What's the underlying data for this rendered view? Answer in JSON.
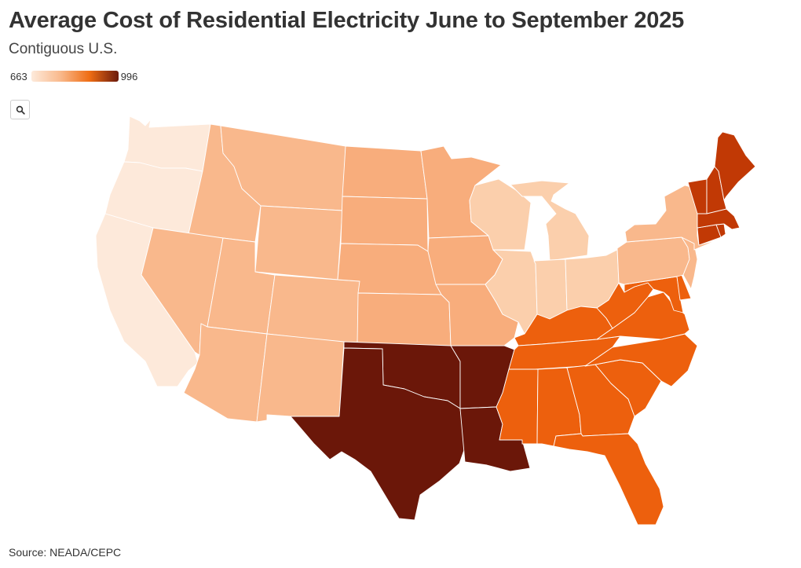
{
  "header": {
    "title": "Average Cost of Residential Electricity June to September 2025",
    "subtitle": "Contiguous U.S."
  },
  "legend": {
    "min_label": "663",
    "max_label": "996",
    "gradient": [
      "#fdeadb",
      "#f9b98c",
      "#ef6d14",
      "#6b1a0c"
    ]
  },
  "controls": {
    "zoom_icon": "magnifier-icon"
  },
  "footer": {
    "source": "Source: NEADA/CEPC"
  },
  "map": {
    "region": "Contiguous U.S.",
    "level_colors": {
      "1": "#fde9da",
      "2": "#fbcfac",
      "3": "#f9b88c",
      "4": "#f8ad7c",
      "5": "#ed600d",
      "6": "#c13905",
      "7": "#6b1709"
    },
    "states": [
      {
        "id": "WA",
        "level": 1
      },
      {
        "id": "OR",
        "level": 1
      },
      {
        "id": "CA",
        "level": 1
      },
      {
        "id": "WI",
        "level": 2
      },
      {
        "id": "MI",
        "level": 2
      },
      {
        "id": "IL",
        "level": 2
      },
      {
        "id": "IN",
        "level": 2
      },
      {
        "id": "OH",
        "level": 2
      },
      {
        "id": "ID",
        "level": 3
      },
      {
        "id": "MT",
        "level": 3
      },
      {
        "id": "WY",
        "level": 3
      },
      {
        "id": "NV",
        "level": 3
      },
      {
        "id": "UT",
        "level": 3
      },
      {
        "id": "CO",
        "level": 3
      },
      {
        "id": "AZ",
        "level": 3
      },
      {
        "id": "NM",
        "level": 3
      },
      {
        "id": "PA",
        "level": 3
      },
      {
        "id": "NY",
        "level": 3
      },
      {
        "id": "NJ",
        "level": 3
      },
      {
        "id": "ND",
        "level": 4
      },
      {
        "id": "SD",
        "level": 4
      },
      {
        "id": "NE",
        "level": 4
      },
      {
        "id": "KS",
        "level": 4
      },
      {
        "id": "MN",
        "level": 4
      },
      {
        "id": "IA",
        "level": 4
      },
      {
        "id": "MO",
        "level": 4
      },
      {
        "id": "KY",
        "level": 5
      },
      {
        "id": "TN",
        "level": 5
      },
      {
        "id": "WV",
        "level": 5
      },
      {
        "id": "VA",
        "level": 5
      },
      {
        "id": "NC",
        "level": 5
      },
      {
        "id": "SC",
        "level": 5
      },
      {
        "id": "GA",
        "level": 5
      },
      {
        "id": "AL",
        "level": 5
      },
      {
        "id": "MS",
        "level": 5
      },
      {
        "id": "FL",
        "level": 5
      },
      {
        "id": "MD",
        "level": 5
      },
      {
        "id": "DE",
        "level": 5
      },
      {
        "id": "ME",
        "level": 6
      },
      {
        "id": "VT",
        "level": 6
      },
      {
        "id": "NH",
        "level": 6
      },
      {
        "id": "MA",
        "level": 6
      },
      {
        "id": "CT",
        "level": 6
      },
      {
        "id": "RI",
        "level": 6
      },
      {
        "id": "TX",
        "level": 7
      },
      {
        "id": "OK",
        "level": 7
      },
      {
        "id": "AR",
        "level": 7
      },
      {
        "id": "LA",
        "level": 7
      }
    ]
  }
}
